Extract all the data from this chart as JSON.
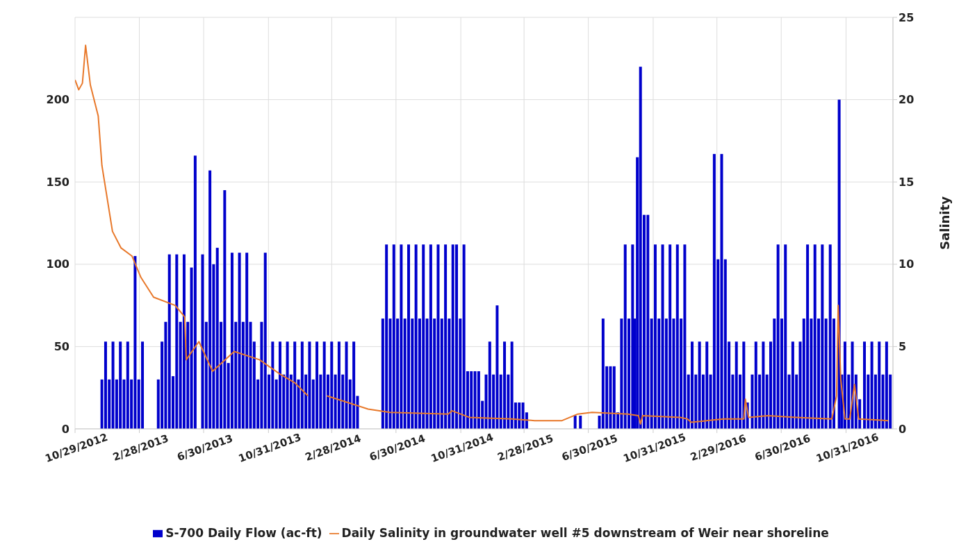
{
  "chart_data": {
    "type": "bar",
    "y2label": "Salinity",
    "legend": "bottom",
    "grid": true,
    "xlim": [
      "2012-10-29",
      "2017-01-28"
    ],
    "xticks": [
      {
        "value": "2012-10-29",
        "label": "10/29/2012"
      },
      {
        "value": "2013-02-28",
        "label": "2/28/2013"
      },
      {
        "value": "2013-06-30",
        "label": "6/30/2013"
      },
      {
        "value": "2013-10-31",
        "label": "10/31/2013"
      },
      {
        "value": "2014-02-28",
        "label": "2/28/2014"
      },
      {
        "value": "2014-06-30",
        "label": "6/30/2014"
      },
      {
        "value": "2014-10-31",
        "label": "10/31/2014"
      },
      {
        "value": "2015-02-28",
        "label": "2/28/2015"
      },
      {
        "value": "2015-06-30",
        "label": "6/30/2015"
      },
      {
        "value": "2015-10-31",
        "label": "10/31/2015"
      },
      {
        "value": "2016-02-29",
        "label": "2/29/2016"
      },
      {
        "value": "2016-06-30",
        "label": "6/30/2016"
      },
      {
        "value": "2016-10-31",
        "label": "10/31/2016"
      }
    ],
    "ylim": [
      0,
      250
    ],
    "yticks": [
      0,
      50,
      100,
      150,
      200
    ],
    "y2lim": [
      0,
      25
    ],
    "y2ticks": [
      0,
      5,
      10,
      15,
      20,
      25
    ],
    "series": [
      {
        "name": "S-700 Daily Flow (ac-ft)",
        "color": "#0000cc",
        "x": [
          "2012-12-19",
          "2012-12-26",
          "2013-01-02",
          "2013-01-09",
          "2013-01-16",
          "2013-01-23",
          "2013-01-30",
          "2013-02-06",
          "2013-02-13",
          "2013-02-20",
          "2013-02-27",
          "2013-03-06",
          "2013-04-05",
          "2013-04-12",
          "2013-04-19",
          "2013-04-26",
          "2013-05-03",
          "2013-05-10",
          "2013-05-17",
          "2013-05-24",
          "2013-05-31",
          "2013-06-07",
          "2013-06-14",
          "2013-06-28",
          "2013-07-05",
          "2013-07-12",
          "2013-07-19",
          "2013-07-26",
          "2013-08-02",
          "2013-08-09",
          "2013-08-16",
          "2013-08-23",
          "2013-08-30",
          "2013-09-06",
          "2013-09-13",
          "2013-09-20",
          "2013-09-27",
          "2013-10-04",
          "2013-10-11",
          "2013-10-18",
          "2013-10-25",
          "2013-11-01",
          "2013-11-08",
          "2013-11-15",
          "2013-11-22",
          "2013-11-29",
          "2013-12-06",
          "2013-12-13",
          "2013-12-20",
          "2013-12-27",
          "2014-01-03",
          "2014-01-10",
          "2014-01-17",
          "2014-01-24",
          "2014-01-31",
          "2014-02-07",
          "2014-02-14",
          "2014-02-21",
          "2014-02-28",
          "2014-03-07",
          "2014-03-14",
          "2014-03-21",
          "2014-03-28",
          "2014-04-04",
          "2014-04-11",
          "2014-04-18",
          "2014-06-05",
          "2014-06-12",
          "2014-06-19",
          "2014-06-26",
          "2014-07-03",
          "2014-07-10",
          "2014-07-17",
          "2014-07-24",
          "2014-07-31",
          "2014-08-07",
          "2014-08-14",
          "2014-08-21",
          "2014-08-28",
          "2014-09-04",
          "2014-09-11",
          "2014-09-18",
          "2014-09-25",
          "2014-10-02",
          "2014-10-09",
          "2014-10-16",
          "2014-10-23",
          "2014-10-30",
          "2014-11-06",
          "2014-11-13",
          "2014-11-20",
          "2014-11-27",
          "2014-12-04",
          "2014-12-11",
          "2014-12-18",
          "2014-12-25",
          "2015-01-01",
          "2015-01-08",
          "2015-01-15",
          "2015-01-22",
          "2015-01-29",
          "2015-02-05",
          "2015-02-12",
          "2015-02-19",
          "2015-02-26",
          "2015-03-05",
          "2015-06-05",
          "2015-06-15",
          "2015-07-21",
          "2015-07-28",
          "2015-08-04",
          "2015-08-11",
          "2015-08-18",
          "2015-08-25",
          "2015-09-01",
          "2015-09-08",
          "2015-09-15",
          "2015-09-22",
          "2015-09-26",
          "2015-10-01",
          "2015-10-07",
          "2015-10-14",
          "2015-10-21",
          "2015-10-28",
          "2015-11-04",
          "2015-11-11",
          "2015-11-18",
          "2015-11-25",
          "2015-12-02",
          "2015-12-09",
          "2015-12-16",
          "2015-12-23",
          "2015-12-30",
          "2016-01-06",
          "2016-01-13",
          "2016-01-20",
          "2016-01-27",
          "2016-02-03",
          "2016-02-10",
          "2016-02-17",
          "2016-02-24",
          "2016-03-02",
          "2016-03-09",
          "2016-03-16",
          "2016-03-23",
          "2016-03-30",
          "2016-04-06",
          "2016-04-13",
          "2016-04-20",
          "2016-04-27",
          "2016-05-06",
          "2016-05-13",
          "2016-05-20",
          "2016-05-27",
          "2016-06-03",
          "2016-06-10",
          "2016-06-17",
          "2016-06-24",
          "2016-07-01",
          "2016-07-08",
          "2016-07-15",
          "2016-07-22",
          "2016-07-29",
          "2016-08-05",
          "2016-08-12",
          "2016-08-19",
          "2016-08-26",
          "2016-09-02",
          "2016-09-09",
          "2016-09-16",
          "2016-09-23",
          "2016-10-01",
          "2016-10-08",
          "2016-10-18",
          "2016-10-23",
          "2016-10-29",
          "2016-11-05",
          "2016-11-12",
          "2016-11-19",
          "2016-11-26",
          "2016-12-05",
          "2016-12-12",
          "2016-12-19",
          "2016-12-26",
          "2017-01-02",
          "2017-01-09",
          "2017-01-16",
          "2017-01-23"
        ],
        "values": [
          30,
          53,
          30,
          53,
          30,
          53,
          30,
          53,
          30,
          105,
          30,
          53,
          30,
          53,
          65,
          106,
          32,
          106,
          65,
          106,
          65,
          98,
          166,
          106,
          65,
          157,
          100,
          110,
          65,
          145,
          40,
          107,
          65,
          107,
          65,
          107,
          65,
          53,
          30,
          65,
          107,
          33,
          53,
          30,
          53,
          33,
          53,
          33,
          53,
          30,
          53,
          33,
          53,
          30,
          53,
          33,
          53,
          33,
          53,
          33,
          53,
          33,
          53,
          30,
          53,
          20,
          67,
          112,
          67,
          112,
          67,
          112,
          67,
          112,
          67,
          112,
          67,
          112,
          67,
          112,
          67,
          112,
          67,
          112,
          67,
          112,
          112,
          67,
          112,
          35,
          35,
          35,
          35,
          17,
          33,
          53,
          33,
          75,
          33,
          53,
          33,
          53,
          16,
          16,
          16,
          10,
          8,
          8,
          8,
          67,
          38,
          38,
          38,
          10,
          67,
          112,
          67,
          112,
          67,
          165,
          220,
          130,
          130,
          67,
          112,
          67,
          112,
          67,
          112,
          67,
          112,
          67,
          112,
          33,
          53,
          33,
          53,
          33,
          53,
          33,
          167,
          103,
          167,
          103,
          53,
          33,
          53,
          33,
          53,
          16,
          33,
          53,
          33,
          53,
          33,
          53,
          67,
          112,
          67,
          112,
          33,
          53,
          33,
          53,
          67,
          112,
          67,
          112,
          67,
          112,
          67,
          112,
          67,
          200,
          33,
          53,
          33,
          53,
          33,
          18,
          53,
          33,
          53,
          33,
          53,
          33,
          53,
          33
        ]
      },
      {
        "name": "Daily Salinity in groundwater well #5 downstream of Weir near shoreline",
        "type": "line",
        "axis": "y2",
        "color": "#e8782a",
        "x": [
          "2012-10-29",
          "2012-11-05",
          "2012-11-12",
          "2012-11-18",
          "2012-11-27",
          "2012-12-12",
          "2012-12-19",
          "2013-01-08",
          "2013-01-24",
          "2013-02-14",
          "2013-03-03",
          "2013-03-27",
          "2013-05-07",
          "2013-05-25",
          "2013-05-28",
          "2013-06-21",
          "2013-07-17",
          "2013-08-27",
          "2013-10-14",
          "2013-11-23",
          "2013-12-20",
          "2014-01-14",
          "2014-02-01",
          "2014-02-19",
          "2014-03-21",
          "2014-05-08",
          "2014-06-18",
          "2014-10-07",
          "2014-10-14",
          "2014-11-16",
          "2015-02-05",
          "2015-03-20",
          "2015-05-11",
          "2015-06-10",
          "2015-07-07",
          "2015-09-13",
          "2015-10-03",
          "2015-10-07",
          "2015-10-11",
          "2015-12-21",
          "2016-01-04",
          "2016-01-11",
          "2016-03-13",
          "2016-04-20",
          "2016-04-23",
          "2016-04-29",
          "2016-06-05",
          "2016-07-28",
          "2016-10-04",
          "2016-10-13",
          "2016-10-16",
          "2016-10-21",
          "2016-10-29",
          "2016-11-07",
          "2016-11-16",
          "2016-11-24",
          "2017-01-19"
        ],
        "values": [
          21.2,
          20.6,
          21.0,
          23.3,
          20.9,
          19.0,
          16.0,
          12.0,
          11.0,
          10.5,
          9.2,
          8.0,
          7.5,
          6.8,
          4.2,
          5.3,
          3.5,
          4.7,
          4.2,
          3.3,
          2.8,
          2.0,
          null,
          2.0,
          1.7,
          1.2,
          1.0,
          0.9,
          1.1,
          0.7,
          0.6,
          0.5,
          0.5,
          0.9,
          1.0,
          0.9,
          0.8,
          0.3,
          0.8,
          0.7,
          0.6,
          0.4,
          0.6,
          0.6,
          1.8,
          0.7,
          0.8,
          0.7,
          0.6,
          2.0,
          7.5,
          3.0,
          0.6,
          0.6,
          2.7,
          0.6,
          0.5
        ]
      }
    ]
  }
}
